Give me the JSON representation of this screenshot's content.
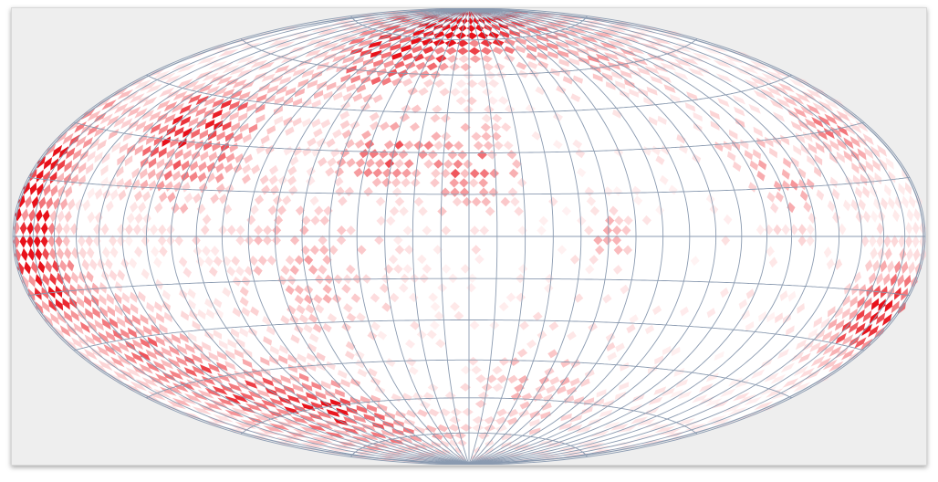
{
  "chart_data": {
    "type": "heatmap",
    "projection": "hammer-aitoff",
    "title": "",
    "xlabel": "",
    "ylabel": "",
    "graticule": {
      "meridian_step_deg": 10,
      "parallel_step_deg": 15,
      "visible": true
    },
    "colors": {
      "background": "#eeeeee",
      "globe_fill": "#ffffff",
      "graticule": "#8a9ab0",
      "heat_low": "#ffe5e5",
      "heat_high": "#e8111a"
    },
    "value_scale": [
      0,
      1
    ],
    "hotspots": [
      {
        "lon": -175,
        "lat": 10,
        "sigma": 10,
        "value": 0.95
      },
      {
        "lon": -168,
        "lat": -10,
        "sigma": 9,
        "value": 0.8
      },
      {
        "lon": -172,
        "lat": 28,
        "sigma": 9,
        "value": 0.45
      },
      {
        "lon": 168,
        "lat": -20,
        "sigma": 9,
        "value": 0.95
      },
      {
        "lon": 160,
        "lat": 30,
        "sigma": 8,
        "value": 0.5
      },
      {
        "lon": -110,
        "lat": 30,
        "sigma": 14,
        "value": 0.6
      },
      {
        "lon": -130,
        "lat": 35,
        "sigma": 10,
        "value": 0.45
      },
      {
        "lon": -70,
        "lat": 70,
        "sigma": 12,
        "value": 0.55
      },
      {
        "lon": -40,
        "lat": 72,
        "sigma": 12,
        "value": 0.6
      },
      {
        "lon": 20,
        "lat": 84,
        "sigma": 10,
        "value": 0.6
      },
      {
        "lon": -90,
        "lat": -62,
        "sigma": 12,
        "value": 0.7
      },
      {
        "lon": -130,
        "lat": -50,
        "sigma": 12,
        "value": 0.5
      },
      {
        "lon": -35,
        "lat": 30,
        "sigma": 10,
        "value": 0.55
      },
      {
        "lon": 0,
        "lat": 25,
        "sigma": 12,
        "value": 0.5
      },
      {
        "lon": 50,
        "lat": 0,
        "sigma": 5,
        "value": 0.5
      },
      {
        "lon": 120,
        "lat": 20,
        "sigma": 12,
        "value": 0.35
      },
      {
        "lon": 90,
        "lat": 70,
        "sigma": 16,
        "value": 0.35
      },
      {
        "lon": -150,
        "lat": -30,
        "sigma": 14,
        "value": 0.45
      },
      {
        "lon": -60,
        "lat": -10,
        "sigma": 18,
        "value": 0.3
      },
      {
        "lon": 40,
        "lat": -55,
        "sigma": 14,
        "value": 0.3
      }
    ]
  }
}
